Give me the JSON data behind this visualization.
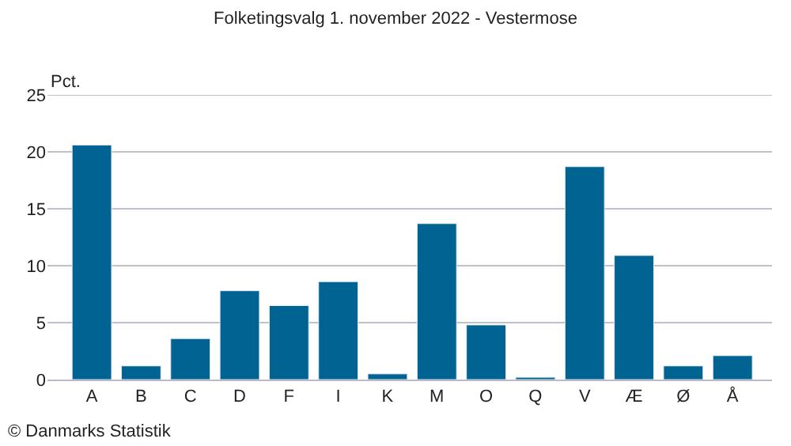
{
  "chart_data": {
    "type": "bar",
    "title": "Folketingsvalg 1. november 2022 - Vestermose",
    "ylabel": "Pct.",
    "categories": [
      "A",
      "B",
      "C",
      "D",
      "F",
      "I",
      "K",
      "M",
      "O",
      "Q",
      "V",
      "Æ",
      "Ø",
      "Å"
    ],
    "values": [
      20.6,
      1.2,
      3.6,
      7.8,
      6.5,
      8.6,
      0.5,
      13.7,
      4.8,
      0.2,
      18.7,
      10.9,
      1.2,
      2.1
    ],
    "color": "#006391",
    "ylim": [
      0,
      25
    ],
    "yticks": [
      0,
      5,
      10,
      15,
      20,
      25
    ],
    "grid": "y",
    "annotations": [
      "© Danmarks Statistik"
    ]
  }
}
